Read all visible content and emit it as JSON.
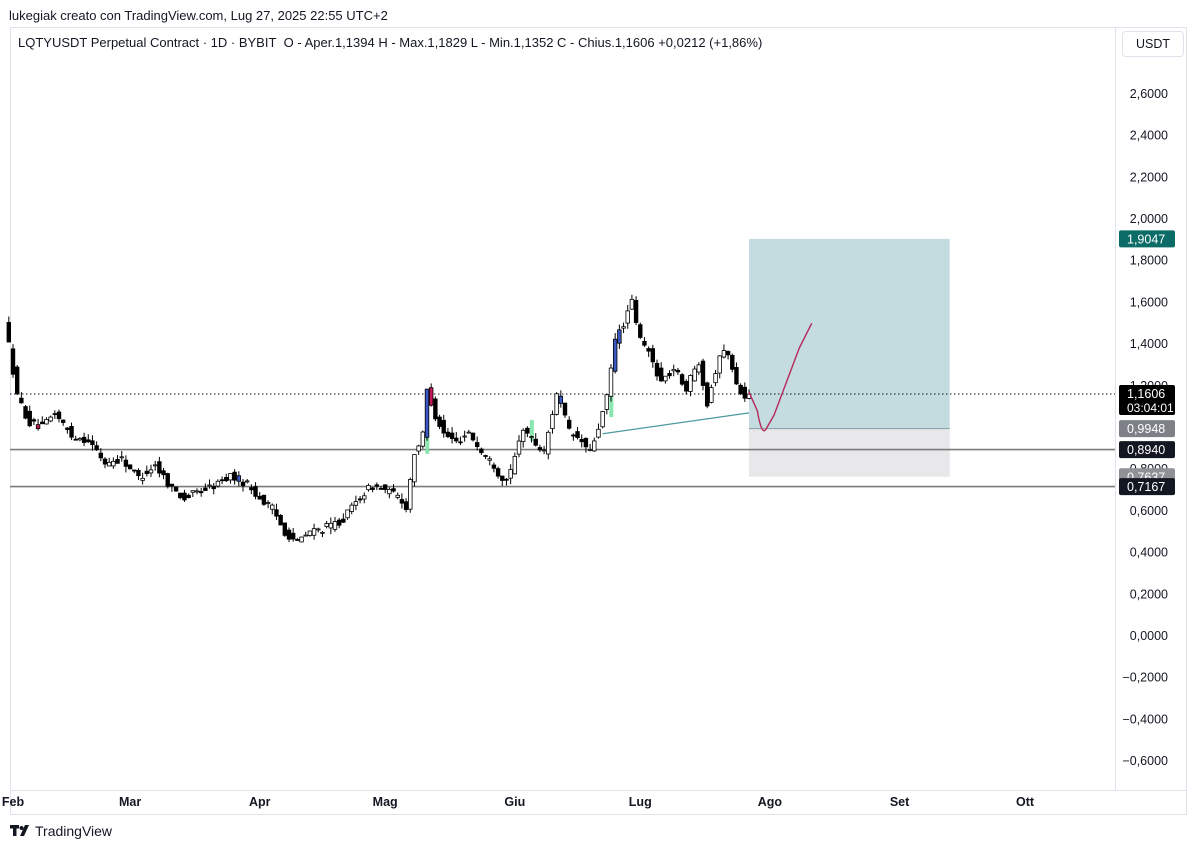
{
  "header": {
    "credit": "lukegiak creato con TradingView.com, Lug 27, 2025 22:55 UTC+2"
  },
  "legend": {
    "symbol_line": "LQTYUSDT Perpetual Contract · 1D · BYBIT",
    "ohlc": "O - Aper.1,1394  H - Max.1,1829  L - Min.1,1352  C - Chius.1,1606  +0,0212 (+1,86%)"
  },
  "currency_button": "USDT",
  "brand": {
    "name": "TradingView",
    "icon": "tradingview-logo-icon"
  },
  "chart_data": {
    "type": "candlestick",
    "title": "LQTYUSDT Perpetual Contract · 1D · BYBIT",
    "y_axis": {
      "ticks": [
        2.6,
        2.4,
        2.2,
        2.0,
        1.8,
        1.6,
        1.4,
        1.2,
        1.0,
        0.8,
        0.6,
        0.4,
        0.2,
        0.0,
        -0.2,
        -0.4,
        -0.6
      ],
      "tick_labels": [
        "2,6000",
        "2,4000",
        "2,2000",
        "2,0000",
        "1,8000",
        "1,6000",
        "1,4000",
        "1,2000",
        "1,0000",
        "0,8000",
        "0,6000",
        "0,4000",
        "0,2000",
        "0,0000",
        "−0,2000",
        "−0,4000",
        "−0,6000"
      ],
      "range": [
        -0.7,
        2.75
      ]
    },
    "x_axis": {
      "labels": [
        "Feb",
        "Mar",
        "Apr",
        "Mag",
        "Giu",
        "Lug",
        "Ago",
        "Set",
        "Ott"
      ],
      "label_dates": [
        "2025-02-01",
        "2025-03-01",
        "2025-04-01",
        "2025-05-01",
        "2025-06-01",
        "2025-07-01",
        "2025-08-01",
        "2025-09-01",
        "2025-10-01"
      ]
    },
    "price_keypoints": [
      [
        "2025-01-31",
        1.52
      ],
      [
        "2025-02-03",
        1.15
      ],
      [
        "2025-02-06",
        1.02
      ],
      [
        "2025-02-09",
        1.0
      ],
      [
        "2025-02-12",
        1.07
      ],
      [
        "2025-02-16",
        0.96
      ],
      [
        "2025-02-20",
        0.94
      ],
      [
        "2025-02-24",
        0.83
      ],
      [
        "2025-02-28",
        0.85
      ],
      [
        "2025-03-04",
        0.76
      ],
      [
        "2025-03-08",
        0.82
      ],
      [
        "2025-03-12",
        0.71
      ],
      [
        "2025-03-15",
        0.66
      ],
      [
        "2025-03-18",
        0.69
      ],
      [
        "2025-03-22",
        0.72
      ],
      [
        "2025-03-26",
        0.77
      ],
      [
        "2025-03-30",
        0.73
      ],
      [
        "2025-04-02",
        0.66
      ],
      [
        "2025-04-05",
        0.61
      ],
      [
        "2025-04-08",
        0.5
      ],
      [
        "2025-04-11",
        0.45
      ],
      [
        "2025-04-14",
        0.5
      ],
      [
        "2025-04-18",
        0.52
      ],
      [
        "2025-04-22",
        0.56
      ],
      [
        "2025-04-26",
        0.67
      ],
      [
        "2025-04-29",
        0.72
      ],
      [
        "2025-05-02",
        0.7
      ],
      [
        "2025-05-05",
        0.67
      ],
      [
        "2025-05-07",
        0.62
      ],
      [
        "2025-05-09",
        0.88
      ],
      [
        "2025-05-11",
        0.96
      ],
      [
        "2025-05-12",
        1.18
      ],
      [
        "2025-05-14",
        1.06
      ],
      [
        "2025-05-16",
        0.97
      ],
      [
        "2025-05-19",
        0.93
      ],
      [
        "2025-05-22",
        0.98
      ],
      [
        "2025-05-25",
        0.88
      ],
      [
        "2025-05-28",
        0.82
      ],
      [
        "2025-05-30",
        0.75
      ],
      [
        "2025-06-01",
        0.78
      ],
      [
        "2025-06-04",
        1.0
      ],
      [
        "2025-06-07",
        0.92
      ],
      [
        "2025-06-09",
        0.88
      ],
      [
        "2025-06-12",
        1.17
      ],
      [
        "2025-06-15",
        0.98
      ],
      [
        "2025-06-18",
        0.93
      ],
      [
        "2025-06-20",
        0.88
      ],
      [
        "2025-06-22",
        1.0
      ],
      [
        "2025-06-24",
        1.14
      ],
      [
        "2025-06-26",
        1.42
      ],
      [
        "2025-06-28",
        1.5
      ],
      [
        "2025-06-30",
        1.6
      ],
      [
        "2025-07-02",
        1.42
      ],
      [
        "2025-07-04",
        1.36
      ],
      [
        "2025-07-07",
        1.22
      ],
      [
        "2025-07-10",
        1.28
      ],
      [
        "2025-07-13",
        1.19
      ],
      [
        "2025-07-16",
        1.32
      ],
      [
        "2025-07-18",
        1.12
      ],
      [
        "2025-07-21",
        1.35
      ],
      [
        "2025-07-23",
        1.36
      ],
      [
        "2025-07-25",
        1.2
      ],
      [
        "2025-07-27",
        1.16
      ]
    ],
    "trendline": {
      "from": [
        "2025-06-22",
        0.97
      ],
      "to": [
        "2025-07-27",
        1.07
      ],
      "color": "#4c9aa0"
    },
    "horizontal_lines": [
      {
        "value": 0.894,
        "color": "#7b7b7b"
      },
      {
        "value": 0.7167,
        "color": "#7b7b7b"
      }
    ],
    "position_tool": {
      "start": "2025-07-27",
      "end": "2025-09-13",
      "target": 1.9047,
      "entry": 0.9948,
      "stop": 0.7637,
      "profit_color": "#c4dbdf",
      "loss_color": "#e8e8ea"
    },
    "projection_path": [
      [
        "2025-07-27",
        1.17
      ],
      [
        "2025-07-29",
        1.08
      ],
      [
        "2025-07-31",
        0.99
      ],
      [
        "2025-08-02",
        1.06
      ],
      [
        "2025-08-05",
        1.22
      ],
      [
        "2025-08-08",
        1.38
      ],
      [
        "2025-08-11",
        1.5
      ]
    ],
    "projection_color": "#b5285a",
    "last_price": {
      "value": 1.1606,
      "label": "1,1606",
      "countdown": "03:04:01"
    },
    "price_tags": [
      {
        "label": "1,9047",
        "value": 1.9047,
        "bg": "#0b6b66"
      },
      {
        "label": "0,9948",
        "value": 0.9948,
        "bg": "#7e8087"
      },
      {
        "label": "0,8940",
        "value": 0.894,
        "bg": "#131722"
      },
      {
        "label": "0,7637",
        "value": 0.7637,
        "bg": "#8f9197"
      },
      {
        "label": "0,7167",
        "value": 0.7167,
        "bg": "#131722"
      }
    ],
    "colors": {
      "up": "#ffffff",
      "down": "#000000",
      "outline": "#000000",
      "highlight_blue": "#3b57c4",
      "highlight_red": "#c2185b",
      "highlight_green": "#7fe3a8"
    }
  }
}
